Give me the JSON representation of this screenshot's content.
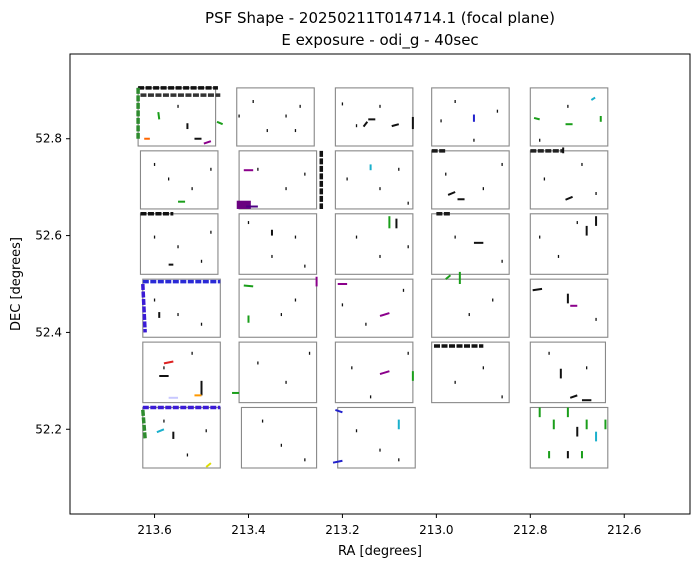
{
  "chart_data": {
    "type": "scatter",
    "title": "PSF Shape - 20250211T014714.1 (focal plane)",
    "subtitle": "E exposure - odi_g - 40sec",
    "xlabel": "RA [degrees]",
    "ylabel": "DEC [degrees]",
    "xlim": [
      213.78,
      212.46
    ],
    "ylim": [
      52.025,
      52.975
    ],
    "x_inverted": true,
    "grid": false,
    "xticks": [
      {
        "value": 213.6,
        "label": "213.6"
      },
      {
        "value": 213.4,
        "label": "213.4"
      },
      {
        "value": 213.2,
        "label": "213.2"
      },
      {
        "value": 213.0,
        "label": "213.0"
      },
      {
        "value": 212.8,
        "label": "212.8"
      },
      {
        "value": 212.6,
        "label": "212.6"
      }
    ],
    "yticks": [
      {
        "value": 52.2,
        "label": "52.2"
      },
      {
        "value": 52.4,
        "label": "52.4"
      },
      {
        "value": 52.6,
        "label": "52.6"
      },
      {
        "value": 52.8,
        "label": "52.8"
      }
    ],
    "otas": [
      {
        "ra_min": 213.47,
        "ra_max": 213.635,
        "dec_min": 52.785,
        "dec_max": 52.905
      },
      {
        "ra_min": 213.26,
        "ra_max": 213.425,
        "dec_min": 52.785,
        "dec_max": 52.905
      },
      {
        "ra_min": 213.05,
        "ra_max": 213.215,
        "dec_min": 52.785,
        "dec_max": 52.905
      },
      {
        "ra_min": 212.845,
        "ra_max": 213.01,
        "dec_min": 52.785,
        "dec_max": 52.905
      },
      {
        "ra_min": 212.635,
        "ra_max": 212.8,
        "dec_min": 52.785,
        "dec_max": 52.905
      },
      {
        "ra_min": 213.465,
        "ra_max": 213.63,
        "dec_min": 52.655,
        "dec_max": 52.775
      },
      {
        "ra_min": 213.255,
        "ra_max": 213.42,
        "dec_min": 52.655,
        "dec_max": 52.775
      },
      {
        "ra_min": 213.05,
        "ra_max": 213.215,
        "dec_min": 52.655,
        "dec_max": 52.775
      },
      {
        "ra_min": 212.845,
        "ra_max": 213.01,
        "dec_min": 52.655,
        "dec_max": 52.775
      },
      {
        "ra_min": 212.635,
        "ra_max": 212.8,
        "dec_min": 52.655,
        "dec_max": 52.775
      },
      {
        "ra_min": 213.465,
        "ra_max": 213.63,
        "dec_min": 52.52,
        "dec_max": 52.645
      },
      {
        "ra_min": 213.255,
        "ra_max": 213.42,
        "dec_min": 52.52,
        "dec_max": 52.645
      },
      {
        "ra_min": 213.05,
        "ra_max": 213.215,
        "dec_min": 52.52,
        "dec_max": 52.645
      },
      {
        "ra_min": 212.845,
        "ra_max": 213.01,
        "dec_min": 52.52,
        "dec_max": 52.645
      },
      {
        "ra_min": 212.635,
        "ra_max": 212.8,
        "dec_min": 52.52,
        "dec_max": 52.645
      },
      {
        "ra_min": 213.46,
        "ra_max": 213.625,
        "dec_min": 52.39,
        "dec_max": 52.51
      },
      {
        "ra_min": 213.255,
        "ra_max": 213.42,
        "dec_min": 52.39,
        "dec_max": 52.51
      },
      {
        "ra_min": 213.05,
        "ra_max": 213.215,
        "dec_min": 52.39,
        "dec_max": 52.51
      },
      {
        "ra_min": 212.845,
        "ra_max": 213.01,
        "dec_min": 52.39,
        "dec_max": 52.51
      },
      {
        "ra_min": 212.635,
        "ra_max": 212.8,
        "dec_min": 52.39,
        "dec_max": 52.51
      },
      {
        "ra_min": 213.46,
        "ra_max": 213.625,
        "dec_min": 52.255,
        "dec_max": 52.38
      },
      {
        "ra_min": 213.255,
        "ra_max": 213.42,
        "dec_min": 52.255,
        "dec_max": 52.38
      },
      {
        "ra_min": 213.05,
        "ra_max": 213.215,
        "dec_min": 52.255,
        "dec_max": 52.38
      },
      {
        "ra_min": 212.845,
        "ra_max": 213.01,
        "dec_min": 52.255,
        "dec_max": 52.38
      },
      {
        "ra_min": 212.64,
        "ra_max": 212.8,
        "dec_min": 52.255,
        "dec_max": 52.38
      },
      {
        "ra_min": 213.46,
        "ra_max": 213.625,
        "dec_min": 52.12,
        "dec_max": 52.245
      },
      {
        "ra_min": 213.255,
        "ra_max": 213.415,
        "dec_min": 52.12,
        "dec_max": 52.245
      },
      {
        "ra_min": 213.045,
        "ra_max": 213.21,
        "dec_min": 52.12,
        "dec_max": 52.245
      },
      {
        "ra_min": 212.635,
        "ra_max": 212.8,
        "dec_min": 52.12,
        "dec_max": 52.245
      }
    ],
    "psf_bands": [
      {
        "ra_start": 213.635,
        "dec_start": 52.905,
        "ra_end": 213.465,
        "dec_end": 52.905,
        "color": "#111111"
      },
      {
        "ra_start": 213.63,
        "dec_start": 52.89,
        "ra_end": 213.46,
        "dec_end": 52.89,
        "color": "#333333"
      },
      {
        "ra_start": 213.635,
        "dec_start": 52.905,
        "ra_end": 213.635,
        "dec_end": 52.8,
        "color": "#2e8b2e"
      },
      {
        "ra_start": 213.245,
        "dec_start": 52.775,
        "ra_end": 213.245,
        "dec_end": 52.655,
        "color": "#111111"
      },
      {
        "ra_start": 213.63,
        "dec_start": 52.645,
        "ra_end": 213.56,
        "dec_end": 52.645,
        "color": "#111111"
      },
      {
        "ra_start": 213.0,
        "dec_start": 52.645,
        "ra_end": 212.97,
        "dec_end": 52.645,
        "color": "#1a1a1a"
      },
      {
        "ra_start": 213.625,
        "dec_start": 52.505,
        "ra_end": 213.46,
        "dec_end": 52.505,
        "color": "#2a2ad6"
      },
      {
        "ra_start": 213.625,
        "dec_start": 52.5,
        "ra_end": 213.62,
        "dec_end": 52.4,
        "color": "#3b1bd6"
      },
      {
        "ra_start": 213.625,
        "dec_start": 52.245,
        "ra_end": 213.46,
        "dec_end": 52.245,
        "color": "#3b1bd6"
      },
      {
        "ra_start": 213.625,
        "dec_start": 52.24,
        "ra_end": 213.62,
        "dec_end": 52.18,
        "color": "#2e8b2e"
      },
      {
        "ra_start": 213.01,
        "dec_start": 52.775,
        "ra_end": 212.98,
        "dec_end": 52.775,
        "color": "#1a1a1a"
      },
      {
        "ra_start": 212.8,
        "dec_start": 52.775,
        "ra_end": 212.73,
        "dec_end": 52.775,
        "color": "#222222"
      },
      {
        "ra_start": 213.005,
        "dec_start": 52.372,
        "ra_end": 212.9,
        "dec_end": 52.372,
        "color": "#111111"
      }
    ],
    "psf_whiskers": [
      {
        "ra": 213.59,
        "dec": 52.84,
        "dra": 0.002,
        "ddec": 0.015,
        "color": "#1a9e1a"
      },
      {
        "ra": 213.53,
        "dec": 52.82,
        "dra": 0.0,
        "ddec": 0.012,
        "color": "#111111"
      },
      {
        "ra": 213.5,
        "dec": 52.8,
        "dra": 0.015,
        "ddec": 0.0,
        "color": "#111111"
      },
      {
        "ra": 213.48,
        "dec": 52.795,
        "dra": 0.015,
        "ddec": -0.005,
        "color": "#8b008b"
      },
      {
        "ra": 213.61,
        "dec": 52.8,
        "dra": 0.012,
        "ddec": 0.0,
        "color": "#ff6600"
      },
      {
        "ra": 213.455,
        "dec": 52.83,
        "dra": 0.012,
        "ddec": 0.005,
        "color": "#1a9e1a"
      },
      {
        "ra": 213.155,
        "dec": 52.825,
        "dra": -0.008,
        "ddec": 0.01,
        "color": "#111111"
      },
      {
        "ra": 213.08,
        "dec": 52.83,
        "dra": 0.015,
        "ddec": -0.004,
        "color": "#111111"
      },
      {
        "ra": 213.13,
        "dec": 52.84,
        "dra": 0.015,
        "ddec": 0.0,
        "color": "#111111"
      },
      {
        "ra": 213.05,
        "dec": 52.82,
        "dra": 0.0,
        "ddec": 0.025,
        "color": "#111111"
      },
      {
        "ra": 212.92,
        "dec": 52.835,
        "dra": 0.0,
        "ddec": 0.015,
        "color": "#2222cc"
      },
      {
        "ra": 212.78,
        "dec": 52.84,
        "dra": 0.012,
        "ddec": 0.003,
        "color": "#1a9e1a"
      },
      {
        "ra": 212.71,
        "dec": 52.83,
        "dra": 0.015,
        "ddec": 0.0,
        "color": "#1a9e1a"
      },
      {
        "ra": 212.65,
        "dec": 52.835,
        "dra": 0.0,
        "ddec": 0.012,
        "color": "#1a9e1a"
      },
      {
        "ra": 212.67,
        "dec": 52.88,
        "dra": -0.008,
        "ddec": 0.005,
        "color": "#1ab0cc"
      },
      {
        "ra": 213.39,
        "dec": 52.735,
        "dra": 0.02,
        "ddec": 0.0,
        "color": "#8b008b"
      },
      {
        "ra": 213.38,
        "dec": 52.66,
        "dra": 0.025,
        "ddec": 0.0,
        "color": "#4b0082"
      },
      {
        "ra": 213.535,
        "dec": 52.67,
        "dra": 0.015,
        "ddec": 0.0,
        "color": "#1a9e1a"
      },
      {
        "ra": 213.14,
        "dec": 52.735,
        "dra": 0.0,
        "ddec": 0.012,
        "color": "#1ab0cc"
      },
      {
        "ra": 212.96,
        "dec": 52.69,
        "dra": 0.015,
        "ddec": -0.006,
        "color": "#111111"
      },
      {
        "ra": 212.94,
        "dec": 52.675,
        "dra": 0.015,
        "ddec": 0.0,
        "color": "#111111"
      },
      {
        "ra": 212.71,
        "dec": 52.68,
        "dra": 0.015,
        "ddec": -0.006,
        "color": "#111111"
      },
      {
        "ra": 212.73,
        "dec": 52.77,
        "dra": 0.0,
        "ddec": 0.012,
        "color": "#111111"
      },
      {
        "ra": 213.1,
        "dec": 52.615,
        "dra": 0.0,
        "ddec": 0.025,
        "color": "#1a9e1a"
      },
      {
        "ra": 213.085,
        "dec": 52.615,
        "dra": 0.0,
        "ddec": 0.02,
        "color": "#111111"
      },
      {
        "ra": 212.9,
        "dec": 52.585,
        "dra": 0.02,
        "ddec": 0.0,
        "color": "#111111"
      },
      {
        "ra": 212.68,
        "dec": 52.6,
        "dra": 0.0,
        "ddec": 0.02,
        "color": "#111111"
      },
      {
        "ra": 212.66,
        "dec": 52.62,
        "dra": 0.0,
        "ddec": 0.02,
        "color": "#111111"
      },
      {
        "ra": 213.56,
        "dec": 52.54,
        "dra": 0.01,
        "ddec": 0.0,
        "color": "#111111"
      },
      {
        "ra": 213.35,
        "dec": 52.6,
        "dra": 0.0,
        "ddec": 0.012,
        "color": "#111111"
      },
      {
        "ra": 213.39,
        "dec": 52.495,
        "dra": 0.02,
        "ddec": 0.002,
        "color": "#1a9e1a"
      },
      {
        "ra": 213.255,
        "dec": 52.495,
        "dra": 0.0,
        "ddec": 0.02,
        "color": "#8b008b"
      },
      {
        "ra": 213.19,
        "dec": 52.5,
        "dra": 0.02,
        "ddec": 0.0,
        "color": "#8b008b"
      },
      {
        "ra": 213.1,
        "dec": 52.44,
        "dra": 0.02,
        "ddec": -0.006,
        "color": "#8b008b"
      },
      {
        "ra": 212.95,
        "dec": 52.5,
        "dra": 0.0,
        "ddec": 0.025,
        "color": "#1a9e1a"
      },
      {
        "ra": 212.98,
        "dec": 52.51,
        "dra": -0.01,
        "ddec": 0.008,
        "color": "#1a9e1a"
      },
      {
        "ra": 212.775,
        "dec": 52.49,
        "dra": 0.02,
        "ddec": -0.003,
        "color": "#111111"
      },
      {
        "ra": 212.72,
        "dec": 52.46,
        "dra": 0.0,
        "ddec": 0.02,
        "color": "#111111"
      },
      {
        "ra": 212.7,
        "dec": 52.455,
        "dra": 0.015,
        "ddec": 0.0,
        "color": "#8b008b"
      },
      {
        "ra": 213.4,
        "dec": 52.42,
        "dra": 0.0,
        "ddec": 0.015,
        "color": "#1a9e1a"
      },
      {
        "ra": 213.59,
        "dec": 52.43,
        "dra": 0.0,
        "ddec": 0.012,
        "color": "#111111"
      },
      {
        "ra": 213.56,
        "dec": 52.34,
        "dra": 0.02,
        "ddec": -0.004,
        "color": "#dd2222"
      },
      {
        "ra": 213.57,
        "dec": 52.31,
        "dra": 0.02,
        "ddec": 0.0,
        "color": "#111111"
      },
      {
        "ra": 213.5,
        "dec": 52.27,
        "dra": 0.0,
        "ddec": 0.03,
        "color": "#111111"
      },
      {
        "ra": 213.5,
        "dec": 52.27,
        "dra": 0.015,
        "ddec": 0.0,
        "color": "#ff9900"
      },
      {
        "ra": 213.55,
        "dec": 52.265,
        "dra": 0.02,
        "ddec": 0.0,
        "color": "#c8c8ff"
      },
      {
        "ra": 213.42,
        "dec": 52.275,
        "dra": 0.015,
        "ddec": 0.0,
        "color": "#1a9e1a"
      },
      {
        "ra": 213.1,
        "dec": 52.32,
        "dra": 0.02,
        "ddec": -0.006,
        "color": "#8b008b"
      },
      {
        "ra": 213.05,
        "dec": 52.3,
        "dra": 0.0,
        "ddec": 0.02,
        "color": "#1a9e1a"
      },
      {
        "ra": 212.735,
        "dec": 52.305,
        "dra": 0.0,
        "ddec": 0.02,
        "color": "#111111"
      },
      {
        "ra": 212.7,
        "dec": 52.27,
        "dra": 0.015,
        "ddec": -0.005,
        "color": "#111111"
      },
      {
        "ra": 212.67,
        "dec": 52.26,
        "dra": 0.02,
        "ddec": 0.0,
        "color": "#111111"
      },
      {
        "ra": 213.58,
        "dec": 52.2,
        "dra": 0.015,
        "ddec": -0.006,
        "color": "#1ab0cc"
      },
      {
        "ra": 213.56,
        "dec": 52.18,
        "dra": 0.0,
        "ddec": 0.015,
        "color": "#111111"
      },
      {
        "ra": 213.48,
        "dec": 52.13,
        "dra": 0.01,
        "ddec": -0.008,
        "color": "#dddd00"
      },
      {
        "ra": 213.2,
        "dec": 52.135,
        "dra": 0.02,
        "ddec": -0.004,
        "color": "#2222cc"
      },
      {
        "ra": 213.2,
        "dec": 52.235,
        "dra": 0.015,
        "ddec": 0.005,
        "color": "#2222cc"
      },
      {
        "ra": 213.08,
        "dec": 52.2,
        "dra": 0.0,
        "ddec": 0.02,
        "color": "#1ab0cc"
      },
      {
        "ra": 212.78,
        "dec": 52.225,
        "dra": 0.0,
        "ddec": 0.02,
        "color": "#1a9e1a"
      },
      {
        "ra": 212.75,
        "dec": 52.2,
        "dra": 0.0,
        "ddec": 0.02,
        "color": "#1a9e1a"
      },
      {
        "ra": 212.72,
        "dec": 52.225,
        "dra": 0.0,
        "ddec": 0.02,
        "color": "#1a9e1a"
      },
      {
        "ra": 212.7,
        "dec": 52.185,
        "dra": 0.0,
        "ddec": 0.02,
        "color": "#111111"
      },
      {
        "ra": 212.68,
        "dec": 52.2,
        "dra": 0.0,
        "ddec": 0.02,
        "color": "#1a9e1a"
      },
      {
        "ra": 212.66,
        "dec": 52.175,
        "dra": 0.0,
        "ddec": 0.02,
        "color": "#1ab0cc"
      },
      {
        "ra": 212.64,
        "dec": 52.2,
        "dra": 0.0,
        "ddec": 0.02,
        "color": "#1a9e1a"
      },
      {
        "ra": 212.76,
        "dec": 52.14,
        "dra": 0.0,
        "ddec": 0.015,
        "color": "#1a9e1a"
      },
      {
        "ra": 212.72,
        "dec": 52.14,
        "dra": 0.0,
        "ddec": 0.015,
        "color": "#111111"
      },
      {
        "ra": 212.69,
        "dec": 52.14,
        "dra": 0.0,
        "ddec": 0.015,
        "color": "#1a9e1a"
      }
    ],
    "psf_blob": {
      "ra_min": 213.425,
      "ra_max": 213.395,
      "dec_min": 52.655,
      "dec_max": 52.672,
      "color": "#6a0080"
    },
    "psf_dots": [
      [
        213.55,
        52.87
      ],
      [
        213.42,
        52.85
      ],
      [
        213.39,
        52.88
      ],
      [
        213.32,
        52.85
      ],
      [
        213.36,
        52.82
      ],
      [
        213.29,
        52.87
      ],
      [
        213.3,
        52.82
      ],
      [
        213.2,
        52.875
      ],
      [
        213.12,
        52.87
      ],
      [
        213.17,
        52.83
      ],
      [
        212.99,
        52.84
      ],
      [
        212.96,
        52.88
      ],
      [
        212.92,
        52.8
      ],
      [
        212.87,
        52.86
      ],
      [
        212.78,
        52.8
      ],
      [
        212.72,
        52.87
      ],
      [
        213.6,
        52.75
      ],
      [
        213.57,
        52.72
      ],
      [
        213.52,
        52.7
      ],
      [
        213.48,
        52.74
      ],
      [
        213.38,
        52.74
      ],
      [
        213.32,
        52.7
      ],
      [
        213.28,
        52.73
      ],
      [
        213.19,
        52.72
      ],
      [
        213.12,
        52.7
      ],
      [
        213.08,
        52.74
      ],
      [
        213.06,
        52.67
      ],
      [
        212.98,
        52.73
      ],
      [
        212.9,
        52.7
      ],
      [
        212.86,
        52.75
      ],
      [
        212.77,
        52.72
      ],
      [
        212.69,
        52.75
      ],
      [
        212.66,
        52.69
      ],
      [
        213.6,
        52.6
      ],
      [
        213.55,
        52.58
      ],
      [
        213.5,
        52.55
      ],
      [
        213.48,
        52.61
      ],
      [
        213.4,
        52.63
      ],
      [
        213.35,
        52.56
      ],
      [
        213.3,
        52.6
      ],
      [
        213.28,
        52.54
      ],
      [
        213.17,
        52.6
      ],
      [
        213.12,
        52.56
      ],
      [
        213.06,
        52.58
      ],
      [
        212.96,
        52.6
      ],
      [
        212.86,
        52.55
      ],
      [
        212.78,
        52.6
      ],
      [
        212.74,
        52.56
      ],
      [
        212.7,
        52.63
      ],
      [
        213.6,
        52.47
      ],
      [
        213.55,
        52.44
      ],
      [
        213.5,
        52.42
      ],
      [
        213.33,
        52.44
      ],
      [
        213.3,
        52.47
      ],
      [
        213.2,
        52.46
      ],
      [
        213.15,
        52.42
      ],
      [
        213.07,
        52.49
      ],
      [
        212.93,
        52.44
      ],
      [
        212.88,
        52.47
      ],
      [
        212.66,
        52.43
      ],
      [
        213.58,
        52.33
      ],
      [
        213.52,
        52.36
      ],
      [
        213.38,
        52.34
      ],
      [
        213.32,
        52.3
      ],
      [
        213.27,
        52.36
      ],
      [
        213.18,
        52.33
      ],
      [
        213.14,
        52.27
      ],
      [
        213.06,
        52.36
      ],
      [
        212.96,
        52.3
      ],
      [
        212.9,
        52.33
      ],
      [
        212.86,
        52.27
      ],
      [
        212.76,
        52.36
      ],
      [
        212.68,
        52.33
      ],
      [
        213.58,
        52.22
      ],
      [
        213.53,
        52.15
      ],
      [
        213.49,
        52.2
      ],
      [
        213.37,
        52.22
      ],
      [
        213.33,
        52.17
      ],
      [
        213.28,
        52.14
      ],
      [
        213.17,
        52.2
      ],
      [
        213.12,
        52.16
      ],
      [
        213.08,
        52.14
      ]
    ]
  }
}
